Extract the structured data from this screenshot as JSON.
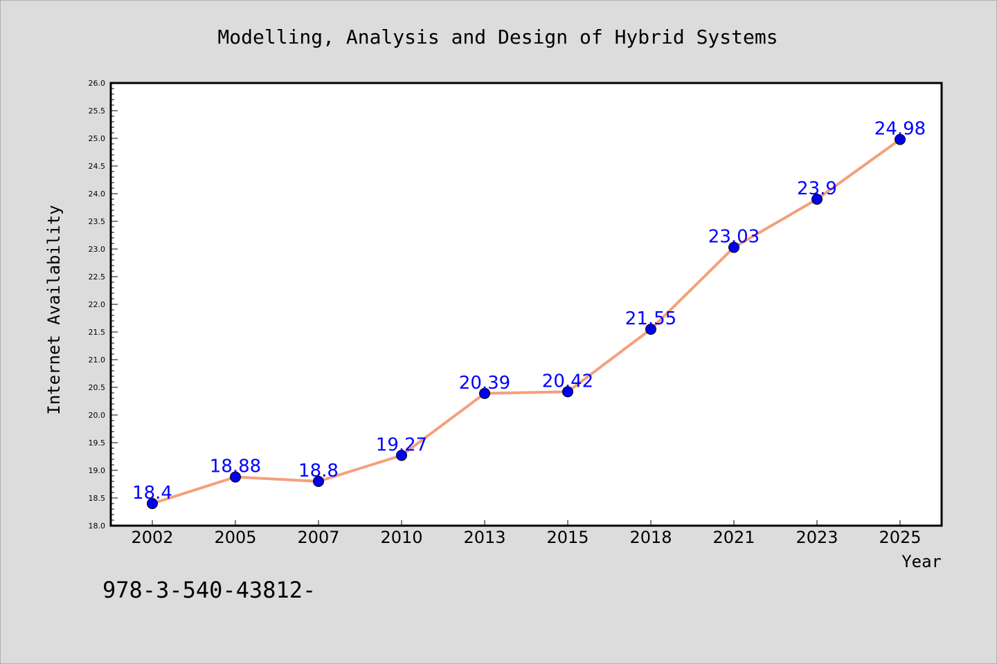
{
  "chart_data": {
    "type": "line",
    "title": "Modelling, Analysis and Design of Hybrid Systems",
    "xlabel": "Year",
    "ylabel": "Internet Availability",
    "categories": [
      "2002",
      "2005",
      "2007",
      "2010",
      "2013",
      "2015",
      "2018",
      "2021",
      "2023",
      "2025"
    ],
    "series": [
      {
        "values": [
          18.4,
          18.88,
          18.8,
          19.27,
          20.39,
          20.42,
          21.55,
          23.03,
          23.9,
          24.98
        ],
        "labels": [
          "18.4",
          "18.88",
          "18.8",
          "19.27",
          "20.39",
          "20.42",
          "21.55",
          "23.03",
          "23.9",
          "24.98"
        ]
      }
    ],
    "ylim": [
      18.0,
      26.0
    ],
    "yticks": [
      "18.0",
      "18.5",
      "19.0",
      "19.5",
      "20.0",
      "20.5",
      "21.0",
      "21.5",
      "22.0",
      "22.5",
      "23.0",
      "23.5",
      "24.0",
      "24.5",
      "25.0",
      "25.5",
      "26.0"
    ],
    "grid": false,
    "colors": {
      "line": "#f4a07c",
      "marker": "#0000ee",
      "label": "#0000ff",
      "background": "#dcdcdc",
      "plot_area": "#ffffff"
    }
  },
  "footer": {
    "isbn": "978-3-540-43812-"
  }
}
